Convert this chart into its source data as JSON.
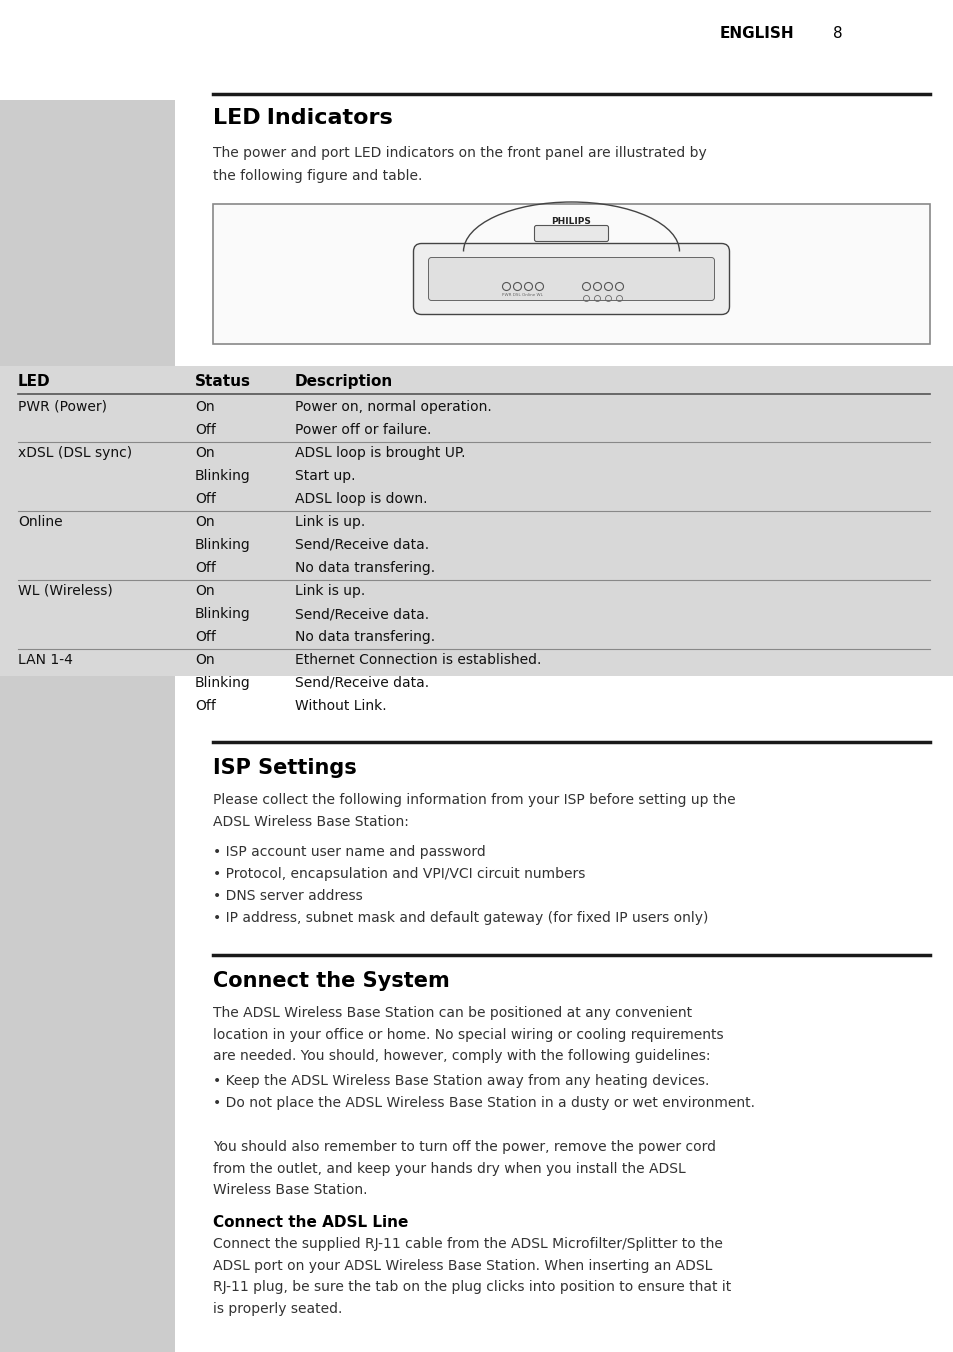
{
  "page_num": "8",
  "lang": "ENGLISH",
  "bg_color": "#ffffff",
  "sidebar_color": "#cccccc",
  "table_bg_color": "#d8d8d8",
  "section1_title": "LED Indicators",
  "section1_intro": "The power and port LED indicators on the front panel are illustrated by\nthe following figure and table.",
  "led_table_headers": [
    "LED",
    "Status",
    "Description"
  ],
  "row_groups": [
    [
      "PWR (Power)",
      [
        [
          "On",
          "Power on, normal operation."
        ],
        [
          "Off",
          "Power off or failure."
        ]
      ]
    ],
    [
      "xDSL (DSL sync)",
      [
        [
          "On",
          "ADSL loop is brought UP."
        ],
        [
          "Blinking",
          "Start up."
        ],
        [
          "Off",
          "ADSL loop is down."
        ]
      ]
    ],
    [
      "Online",
      [
        [
          "On",
          "Link is up."
        ],
        [
          "Blinking",
          "Send/Receive data."
        ],
        [
          "Off",
          "No data transfering."
        ]
      ]
    ],
    [
      "WL (Wireless)",
      [
        [
          "On",
          "Link is up."
        ],
        [
          "Blinking",
          "Send/Receive data."
        ],
        [
          "Off",
          "No data transfering."
        ]
      ]
    ],
    [
      "LAN 1-4",
      [
        [
          "On",
          "Ethernet Connection is established."
        ],
        [
          "Blinking",
          "Send/Receive data."
        ],
        [
          "Off",
          "Without Link."
        ]
      ]
    ]
  ],
  "section2_title": "ISP Settings",
  "section2_intro": "Please collect the following information from your ISP before setting up the\nADSL Wireless Base Station:",
  "section2_bullets": [
    "ISP account user name and password",
    "Protocol, encapsulation and VPI/VCI circuit numbers",
    "DNS server address",
    "IP address, subnet mask and default gateway (for fixed IP users only)"
  ],
  "section3_title": "Connect the System",
  "section3_body": "The ADSL Wireless Base Station can be positioned at any convenient\nlocation in your office or home. No special wiring or cooling requirements\nare needed. You should, however, comply with the following guidelines:",
  "section3_bullets": [
    "Keep the ADSL Wireless Base Station away from any heating devices.",
    "Do not place the ADSL Wireless Base Station in a dusty or wet environment."
  ],
  "section3_body2": "You should also remember to turn off the power, remove the power cord\nfrom the outlet, and keep your hands dry when you install the ADSL\nWireless Base Station.",
  "section4_title": "Connect the ADSL Line",
  "section4_body": "Connect the supplied RJ-11 cable from the ADSL Microfilter/Splitter to the\nADSL port on your ADSL Wireless Base Station. When inserting an ADSL\nRJ-11 plug, be sure the tab on the plug clicks into position to ensure that it\nis properly seated."
}
